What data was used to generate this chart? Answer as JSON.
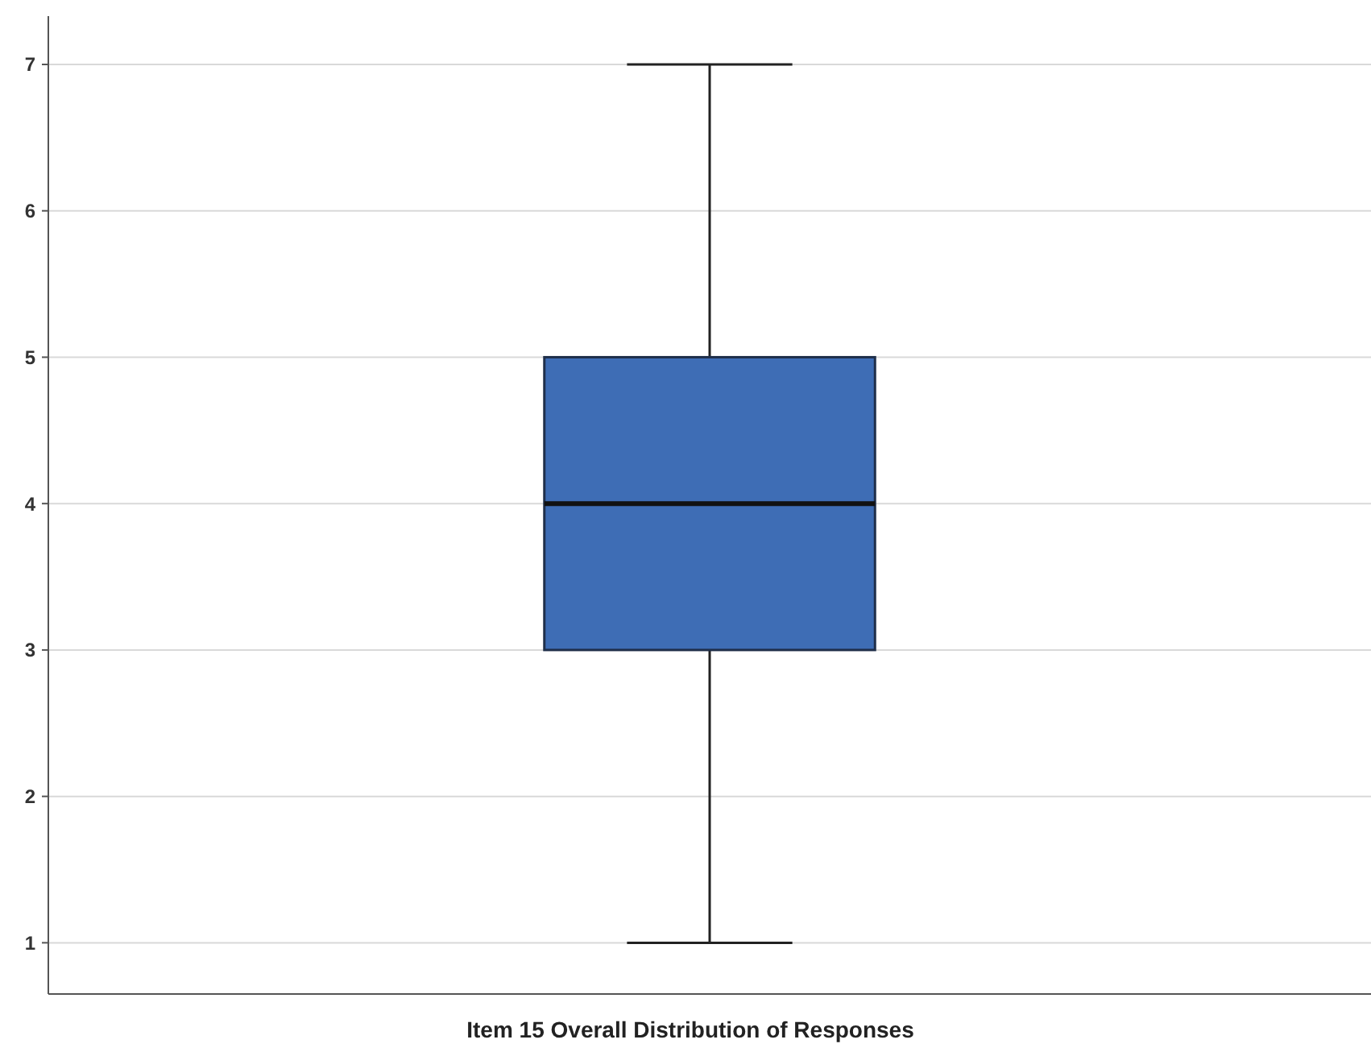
{
  "chart_data": {
    "type": "box",
    "xlabel": "Item 15 Overall Distribution of Responses",
    "categories": [
      null
    ],
    "boxes": [
      {
        "low": 1,
        "q1": 3,
        "median": 4,
        "q3": 5,
        "high": 7
      }
    ],
    "color": "#3e6db5",
    "ylim": [
      0.65,
      7.33
    ],
    "yticks": [
      1,
      2,
      3,
      4,
      5,
      6,
      7
    ],
    "grid": "y"
  }
}
